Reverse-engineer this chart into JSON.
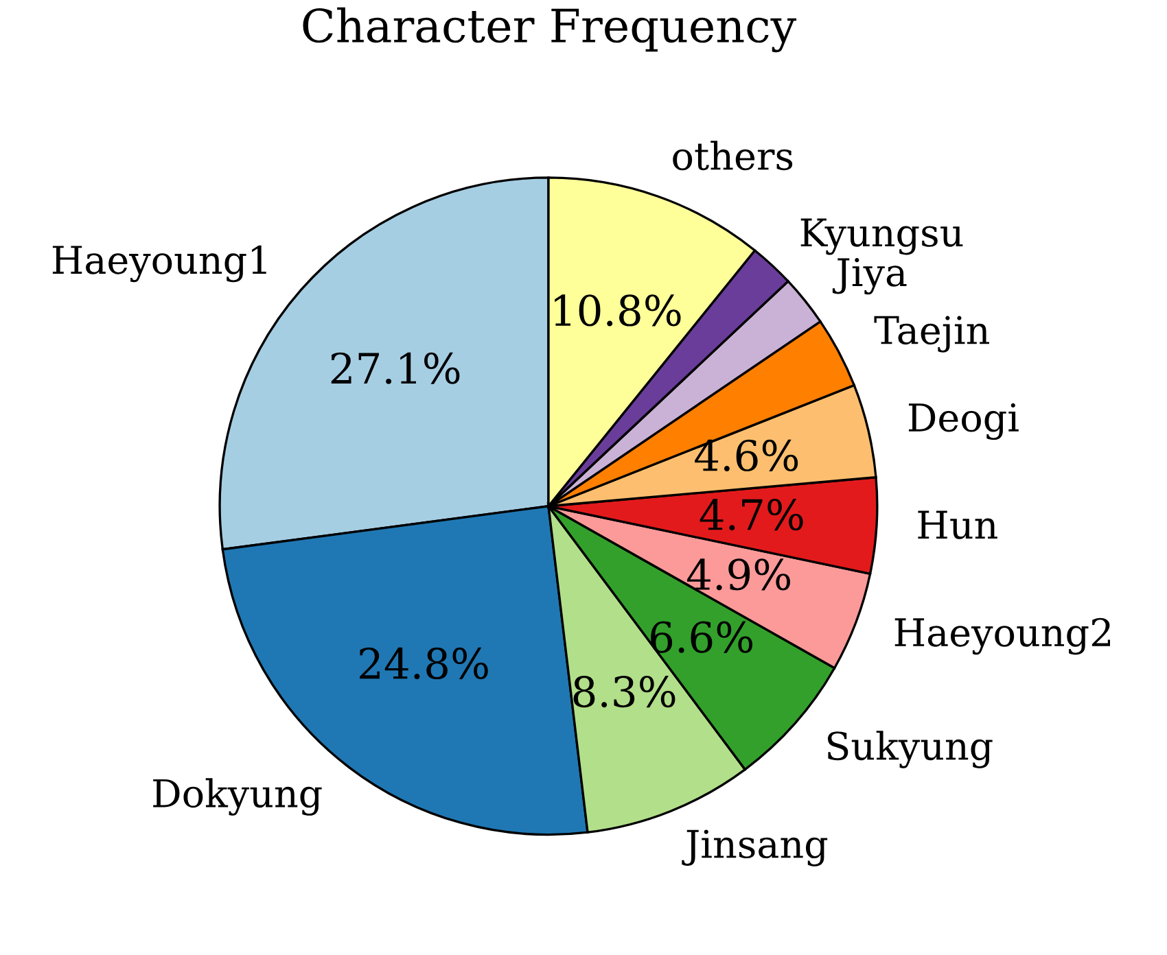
{
  "chart_data": {
    "type": "pie",
    "title": "Character Frequency",
    "categories": [
      "Haeyoung1",
      "Dokyung",
      "Jinsang",
      "Sukyung",
      "Haeyoung2",
      "Hun",
      "Deogi",
      "Taejin",
      "Jiya",
      "Kyungsu",
      "others"
    ],
    "values": [
      27.1,
      24.8,
      8.3,
      6.6,
      4.9,
      4.7,
      4.6,
      3.5,
      2.5,
      2.2,
      10.8
    ],
    "value_labels": [
      "27.1%",
      "24.8%",
      "8.3%",
      "6.6%",
      "4.9%",
      "4.7%",
      "4.6%",
      null,
      null,
      null,
      "10.8%"
    ],
    "colors": [
      "#a6cee3",
      "#1f78b4",
      "#b2df8a",
      "#33a02c",
      "#fb9a99",
      "#e31a1c",
      "#fdbf6f",
      "#ff7f00",
      "#cab2d6",
      "#6a3d9a",
      "#ffff99"
    ],
    "legend": false
  }
}
